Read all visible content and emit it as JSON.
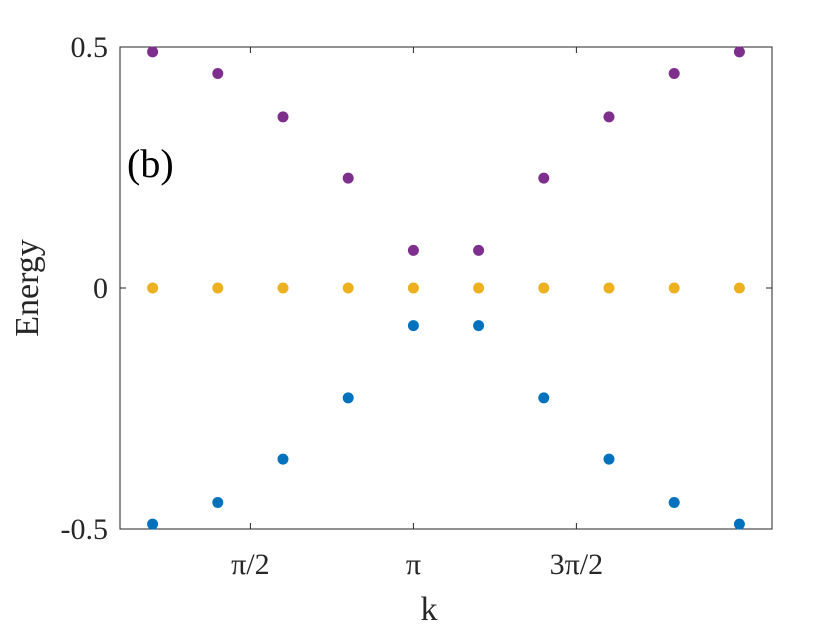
{
  "chart_data": {
    "type": "scatter",
    "panel_label": "(b)",
    "xlabel": "k",
    "ylabel": "Energy",
    "xlim": [
      0.3142,
      6.5974
    ],
    "ylim": [
      -0.5,
      0.5
    ],
    "x_ticks": [
      {
        "value": 1.5708,
        "label": "π/2"
      },
      {
        "value": 3.1416,
        "label": "π"
      },
      {
        "value": 4.7124,
        "label": "3π/2"
      }
    ],
    "y_ticks": [
      {
        "value": -0.5,
        "label": "-0.5"
      },
      {
        "value": 0,
        "label": "0"
      },
      {
        "value": 0.5,
        "label": "0.5"
      }
    ],
    "grid": false,
    "x": [
      0.6283,
      1.2566,
      1.885,
      2.5133,
      3.1416,
      3.7699,
      4.3982,
      5.0265,
      5.6549,
      6.2832
    ],
    "series": [
      {
        "color": "#7E2F8E",
        "values": [
          0.49,
          0.445,
          0.355,
          0.228,
          0.078,
          0.078,
          0.228,
          0.355,
          0.445,
          0.49
        ]
      },
      {
        "color": "#EDB120",
        "values": [
          0,
          0,
          0,
          0,
          0,
          0,
          0,
          0,
          0,
          0
        ]
      },
      {
        "color": "#0072BD",
        "values": [
          -0.49,
          -0.445,
          -0.355,
          -0.228,
          -0.078,
          -0.078,
          -0.228,
          -0.355,
          -0.445,
          -0.49
        ]
      }
    ]
  }
}
